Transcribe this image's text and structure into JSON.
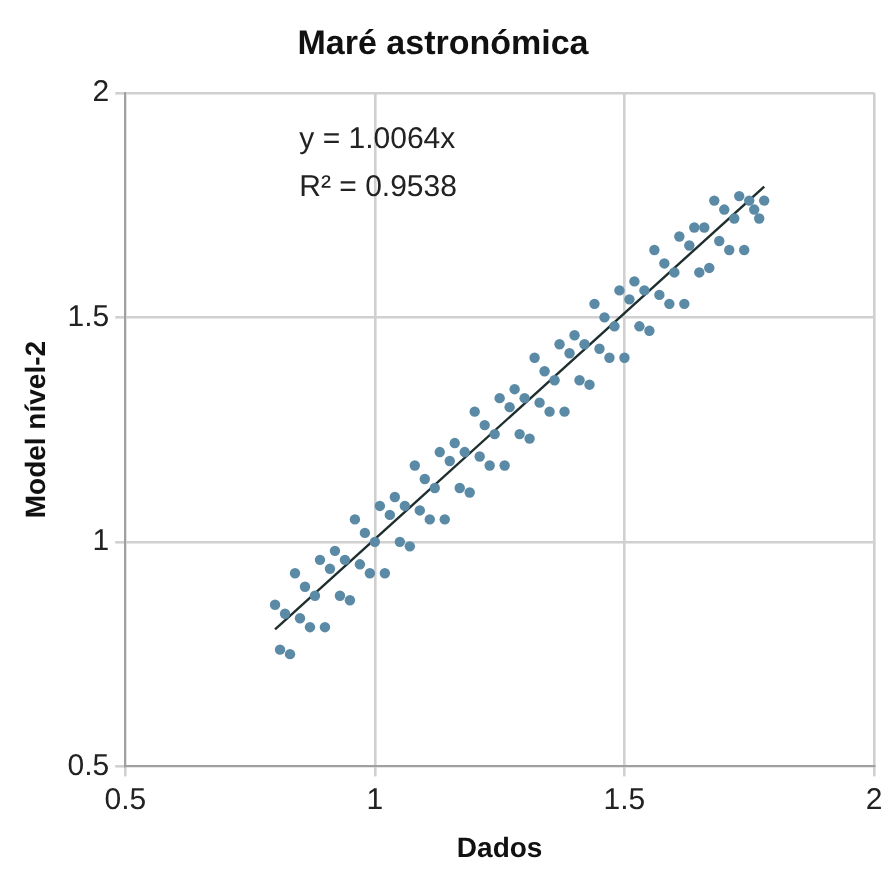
{
  "chart_data": {
    "type": "scatter",
    "title": "Maré astronómica",
    "xlabel": "Dados",
    "ylabel": "Model nível-2",
    "xlim": [
      0.5,
      2
    ],
    "ylim": [
      0.5,
      2
    ],
    "xticks": [
      0.5,
      1,
      1.5,
      2
    ],
    "yticks": [
      0.5,
      1,
      1.5,
      2
    ],
    "grid": true,
    "legend": false,
    "annotations": [
      "y = 1.0064x",
      "R² = 0.9538"
    ],
    "series": [
      {
        "type": "scatter",
        "marker": "circle",
        "color": "#5a8aa6",
        "x": [
          0.8,
          0.81,
          0.82,
          0.83,
          0.84,
          0.85,
          0.86,
          0.87,
          0.88,
          0.89,
          0.9,
          0.91,
          0.92,
          0.93,
          0.94,
          0.95,
          0.96,
          0.97,
          0.98,
          0.99,
          1.0,
          1.01,
          1.02,
          1.03,
          1.04,
          1.05,
          1.06,
          1.07,
          1.08,
          1.09,
          1.1,
          1.11,
          1.12,
          1.13,
          1.14,
          1.15,
          1.16,
          1.17,
          1.18,
          1.19,
          1.2,
          1.21,
          1.22,
          1.23,
          1.24,
          1.25,
          1.26,
          1.27,
          1.28,
          1.29,
          1.3,
          1.31,
          1.32,
          1.33,
          1.34,
          1.35,
          1.36,
          1.37,
          1.38,
          1.39,
          1.4,
          1.41,
          1.42,
          1.43,
          1.44,
          1.45,
          1.46,
          1.47,
          1.48,
          1.49,
          1.5,
          1.51,
          1.52,
          1.53,
          1.54,
          1.55,
          1.56,
          1.57,
          1.58,
          1.59,
          1.6,
          1.61,
          1.62,
          1.63,
          1.64,
          1.65,
          1.66,
          1.67,
          1.68,
          1.69,
          1.7,
          1.71,
          1.72,
          1.73,
          1.74,
          1.75,
          1.76,
          1.77,
          1.78
        ],
        "values": [
          0.86,
          0.76,
          0.84,
          0.75,
          0.93,
          0.83,
          0.9,
          0.81,
          0.88,
          0.96,
          0.81,
          0.94,
          0.98,
          0.88,
          0.96,
          0.87,
          1.05,
          0.95,
          1.02,
          0.93,
          1.0,
          1.08,
          0.93,
          1.06,
          1.1,
          1.0,
          1.08,
          0.99,
          1.17,
          1.07,
          1.14,
          1.05,
          1.12,
          1.2,
          1.05,
          1.18,
          1.22,
          1.12,
          1.2,
          1.11,
          1.29,
          1.19,
          1.26,
          1.17,
          1.24,
          1.32,
          1.17,
          1.3,
          1.34,
          1.24,
          1.32,
          1.23,
          1.41,
          1.31,
          1.38,
          1.29,
          1.36,
          1.44,
          1.29,
          1.42,
          1.46,
          1.36,
          1.44,
          1.35,
          1.53,
          1.43,
          1.5,
          1.41,
          1.48,
          1.56,
          1.41,
          1.54,
          1.58,
          1.48,
          1.56,
          1.47,
          1.65,
          1.55,
          1.62,
          1.53,
          1.6,
          1.68,
          1.53,
          1.66,
          1.7,
          1.6,
          1.7,
          1.61,
          1.76,
          1.67,
          1.74,
          1.65,
          1.72,
          1.77,
          1.65,
          1.76,
          1.74,
          1.72,
          1.76
        ]
      },
      {
        "type": "line",
        "marker": "none",
        "color": "#1e2e2e",
        "x": [
          0.8,
          1.78
        ],
        "values": [
          0.805,
          1.791
        ]
      }
    ]
  }
}
